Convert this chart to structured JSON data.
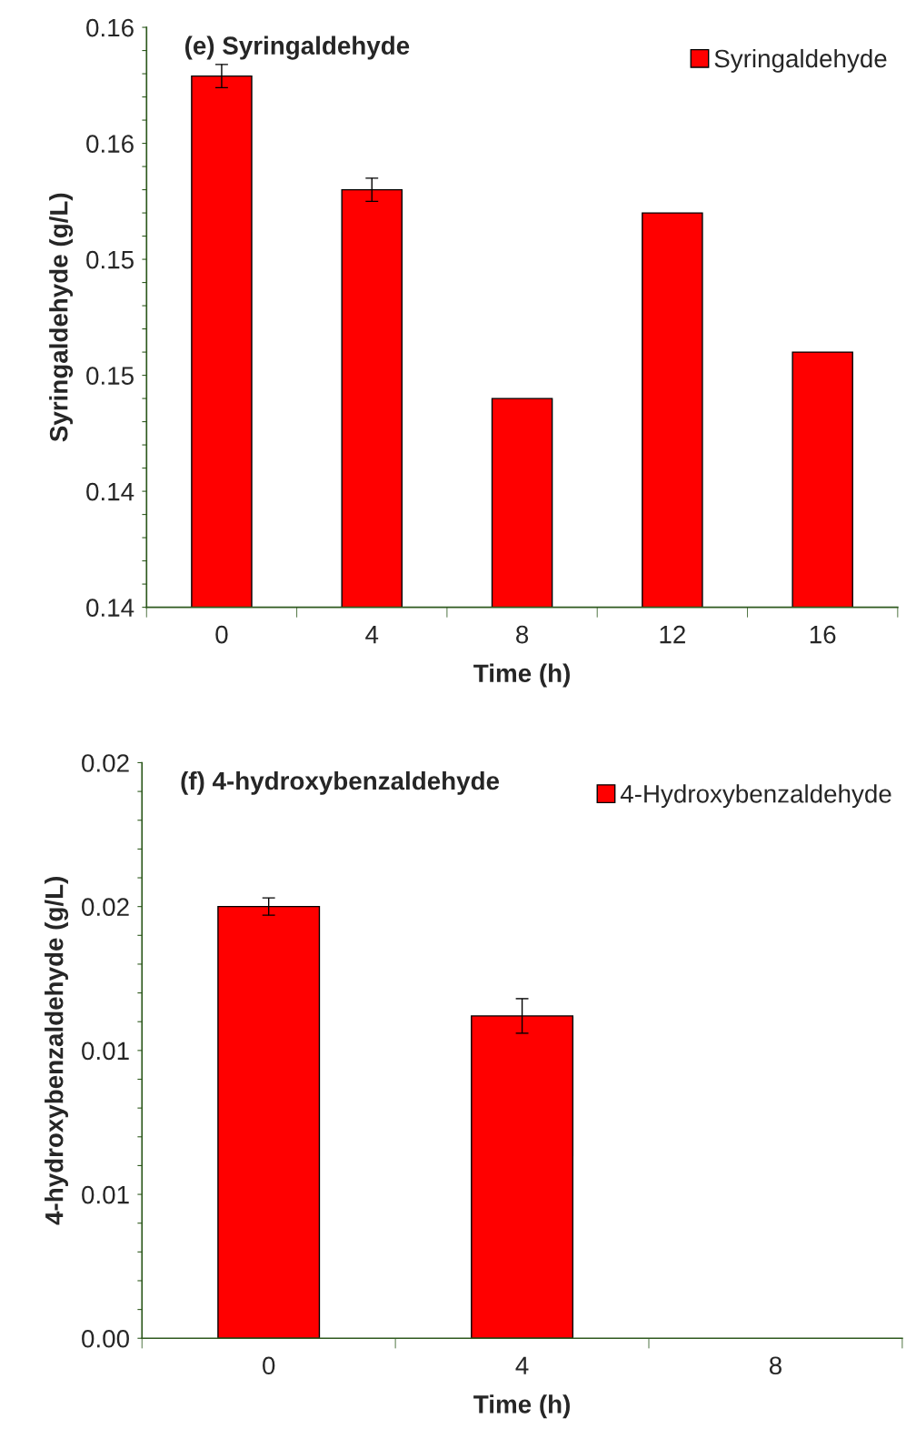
{
  "chart_data": [
    {
      "type": "bar",
      "title": "(e) Syringaldehyde",
      "xlabel": "Time (h)",
      "ylabel": "Syringaldehyde (g/L)",
      "categories": [
        "0",
        "4",
        "8",
        "12",
        "16"
      ],
      "series": [
        {
          "name": "Syringaldehyde",
          "color": "#ff0000",
          "values": [
            0.1579,
            0.153,
            0.144,
            0.152,
            0.146
          ],
          "errors": [
            0.0005,
            0.0005,
            null,
            null,
            null
          ]
        }
      ],
      "ylim": [
        0.135,
        0.16
      ],
      "yticks": [
        {
          "value": 0.135,
          "label": "0.14"
        },
        {
          "value": 0.136,
          "label": null
        },
        {
          "value": 0.137,
          "label": null
        },
        {
          "value": 0.138,
          "label": null
        },
        {
          "value": 0.139,
          "label": null
        },
        {
          "value": 0.14,
          "label": "0.14"
        },
        {
          "value": 0.141,
          "label": null
        },
        {
          "value": 0.142,
          "label": null
        },
        {
          "value": 0.143,
          "label": null
        },
        {
          "value": 0.144,
          "label": null
        },
        {
          "value": 0.145,
          "label": "0.15"
        },
        {
          "value": 0.146,
          "label": null
        },
        {
          "value": 0.147,
          "label": null
        },
        {
          "value": 0.148,
          "label": null
        },
        {
          "value": 0.149,
          "label": null
        },
        {
          "value": 0.15,
          "label": "0.15"
        },
        {
          "value": 0.151,
          "label": null
        },
        {
          "value": 0.152,
          "label": null
        },
        {
          "value": 0.153,
          "label": null
        },
        {
          "value": 0.154,
          "label": null
        },
        {
          "value": 0.155,
          "label": "0.16"
        },
        {
          "value": 0.156,
          "label": null
        },
        {
          "value": 0.157,
          "label": null
        },
        {
          "value": 0.158,
          "label": null
        },
        {
          "value": 0.159,
          "label": null
        },
        {
          "value": 0.16,
          "label": "0.16"
        }
      ],
      "legend": "top right",
      "grid": false
    },
    {
      "type": "bar",
      "title": "(f) 4-hydroxybenzaldehyde",
      "xlabel": "Time (h)",
      "ylabel": "4-hydroxybenzaldehyde (g/L)",
      "categories": [
        "0",
        "4",
        "8"
      ],
      "series": [
        {
          "name": "4-Hydroxybenzaldehyde",
          "color": "#ff0000",
          "values": [
            0.015,
            0.0112,
            null
          ],
          "errors": [
            0.0003,
            0.0006,
            null
          ]
        }
      ],
      "ylim": [
        0,
        0.02
      ],
      "yticks": [
        {
          "value": 0,
          "label": "0.00"
        },
        {
          "value": 0.001,
          "label": null
        },
        {
          "value": 0.002,
          "label": null
        },
        {
          "value": 0.003,
          "label": null
        },
        {
          "value": 0.004,
          "label": null
        },
        {
          "value": 0.005,
          "label": "0.01"
        },
        {
          "value": 0.006,
          "label": null
        },
        {
          "value": 0.007,
          "label": null
        },
        {
          "value": 0.008,
          "label": null
        },
        {
          "value": 0.009,
          "label": null
        },
        {
          "value": 0.01,
          "label": "0.01"
        },
        {
          "value": 0.011,
          "label": null
        },
        {
          "value": 0.012,
          "label": null
        },
        {
          "value": 0.013,
          "label": null
        },
        {
          "value": 0.014,
          "label": null
        },
        {
          "value": 0.015,
          "label": "0.02"
        },
        {
          "value": 0.016,
          "label": null
        },
        {
          "value": 0.017,
          "label": null
        },
        {
          "value": 0.018,
          "label": null
        },
        {
          "value": 0.019,
          "label": null
        },
        {
          "value": 0.02,
          "label": "0.02"
        }
      ],
      "legend": "top right",
      "grid": false
    }
  ]
}
